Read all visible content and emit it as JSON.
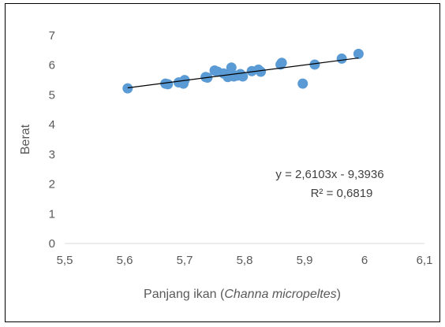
{
  "chart_data": {
    "type": "scatter",
    "title": "",
    "xlabel": "Panjang ikan (",
    "xlabel_italic": "Channa micropeltes",
    "xlabel_close": ")",
    "ylabel": "Berat",
    "xlim": [
      5.5,
      6.1
    ],
    "ylim": [
      0,
      7
    ],
    "x_ticks": [
      "5,5",
      "5,6",
      "5,7",
      "5,8",
      "5,9",
      "6",
      "6,1"
    ],
    "y_ticks": [
      "0",
      "1",
      "2",
      "3",
      "4",
      "5",
      "6",
      "7"
    ],
    "grid": false,
    "marker_color": "#5b9bd5",
    "line_color": "#000000",
    "series": [
      {
        "points": [
          [
            5.605,
            5.22
          ],
          [
            5.668,
            5.38
          ],
          [
            5.672,
            5.36
          ],
          [
            5.69,
            5.42
          ],
          [
            5.698,
            5.38
          ],
          [
            5.7,
            5.5
          ],
          [
            5.735,
            5.6
          ],
          [
            5.738,
            5.58
          ],
          [
            5.75,
            5.82
          ],
          [
            5.755,
            5.78
          ],
          [
            5.765,
            5.72
          ],
          [
            5.772,
            5.6
          ],
          [
            5.778,
            5.92
          ],
          [
            5.782,
            5.62
          ],
          [
            5.788,
            5.65
          ],
          [
            5.793,
            5.7
          ],
          [
            5.797,
            5.62
          ],
          [
            5.812,
            5.8
          ],
          [
            5.823,
            5.85
          ],
          [
            5.827,
            5.78
          ],
          [
            5.86,
            6.02
          ],
          [
            5.862,
            6.08
          ],
          [
            5.897,
            5.38
          ],
          [
            5.917,
            6.02
          ],
          [
            5.962,
            6.22
          ],
          [
            5.99,
            6.38
          ]
        ]
      }
    ],
    "trendline": {
      "slope": 2.6103,
      "intercept": -9.3936,
      "x_range": [
        5.605,
        5.99
      ]
    },
    "annotations": {
      "equation": "y = 2,6103x - 9,3936",
      "r2": "R² = 0,6819"
    }
  }
}
